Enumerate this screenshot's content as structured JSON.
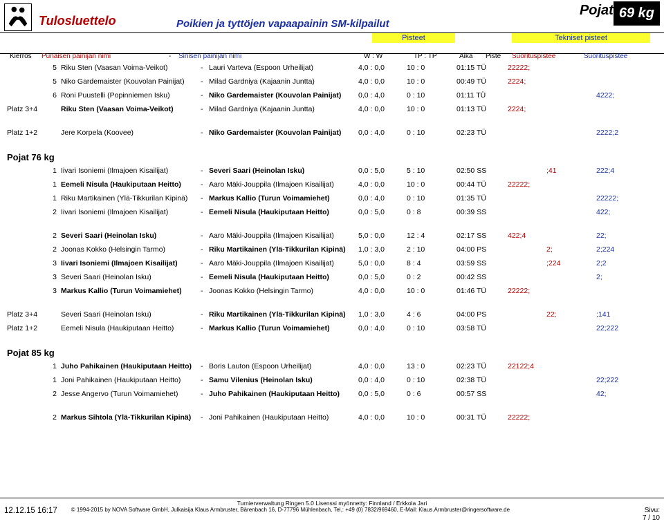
{
  "header": {
    "title_left": "Tulosluettelo",
    "title_center": "Poikien ja tyttöjen vapaapainin SM-kilpailut",
    "pojat": "Pojat",
    "kg": "69 kg",
    "pisteet": "Pisteet",
    "tekniset": "Tekniset pisteet",
    "labels": {
      "kierros": "Kierros",
      "red": "Punaisen painijan nimi",
      "dash": "-",
      "blue": "Sinisen painijan nimi",
      "ww": "W :  W",
      "tptp": "TP :  TP",
      "aika": "Aika",
      "piste": "Piste",
      "sp1": "Suorituspistee",
      "sp2": "Suorituspistee"
    }
  },
  "groups": [
    {
      "rows": [
        {
          "round": "5",
          "red": "Riku Sten (Vaasan Voima-Veikot)",
          "redBold": false,
          "blue": "Lauri Varteva (Espoon Urheilijat)",
          "blueBold": false,
          "ww": "4,0 : 0,0",
          "tptp": "10 :   0",
          "time": "01:15 TÜ",
          "piste": "22222;",
          "sp1": "",
          "sp2": ""
        },
        {
          "round": "5",
          "red": "Niko Gardemaister (Kouvolan Painijat)",
          "redBold": false,
          "blue": "Milad Gardniya (Kajaanin Juntta)",
          "blueBold": false,
          "ww": "4,0 : 0,0",
          "tptp": "10 :   0",
          "time": "00:49 TÜ",
          "piste": "2224;",
          "sp1": "",
          "sp2": ""
        },
        {
          "round": "6",
          "red": "Roni Puustelli (Popinniemen Isku)",
          "redBold": false,
          "blue": "Niko Gardemaister (Kouvolan Painijat)",
          "blueBold": true,
          "ww": "0,0 : 4,0",
          "tptp": "0 : 10",
          "time": "01:11 TÜ",
          "piste": "",
          "sp1": "",
          "sp2": "4222;"
        },
        {
          "round": "Platz 3+4",
          "platz": true,
          "red": "Riku Sten (Vaasan Voima-Veikot)",
          "redBold": true,
          "blue": "Milad Gardniya (Kajaanin Juntta)",
          "blueBold": false,
          "ww": "4,0 : 0,0",
          "tptp": "10 :   0",
          "time": "01:13 TÜ",
          "piste": "2224;",
          "sp1": "",
          "sp2": ""
        }
      ]
    },
    {
      "rows": [
        {
          "round": "Platz 1+2",
          "platz": true,
          "red": "Jere Korpela (Koovee)",
          "redBold": false,
          "blue": "Niko Gardemaister (Kouvolan Painijat)",
          "blueBold": true,
          "ww": "0,0 : 4,0",
          "tptp": "0 : 10",
          "time": "02:23 TÜ",
          "piste": "",
          "sp1": "",
          "sp2": "2222;2"
        }
      ]
    },
    {
      "heading": "Pojat 76 kg",
      "rows": [
        {
          "round": "1",
          "red": "Iivari Isoniemi (Ilmajoen Kisailijat)",
          "redBold": false,
          "blue": "Severi Saari (Heinolan Isku)",
          "blueBold": true,
          "ww": "0,0 : 5,0",
          "tptp": "5 : 10",
          "time": "02:50 SS",
          "piste": "",
          "sp1": ";41",
          "sp2": "222;4"
        },
        {
          "round": "1",
          "red": "Eemeli Nisula (Haukiputaan Heitto)",
          "redBold": true,
          "blue": "Aaro Mäki-Jouppila (Ilmajoen Kisailijat)",
          "blueBold": false,
          "ww": "4,0 : 0,0",
          "tptp": "10 :   0",
          "time": "00:44 TÜ",
          "piste": "22222;",
          "sp1": "",
          "sp2": ""
        },
        {
          "round": "1",
          "red": "Riku Martikainen (Ylä-Tikkurilan Kipinä)",
          "redBold": false,
          "blue": "Markus Kallio (Turun Voimamiehet)",
          "blueBold": true,
          "ww": "0,0 : 4,0",
          "tptp": "0 : 10",
          "time": "01:35 TÜ",
          "piste": "",
          "sp1": "",
          "sp2": "22222;"
        },
        {
          "round": "2",
          "red": "Iivari Isoniemi (Ilmajoen Kisailijat)",
          "redBold": false,
          "blue": "Eemeli Nisula (Haukiputaan Heitto)",
          "blueBold": true,
          "ww": "0,0 : 5,0",
          "tptp": "0 :   8",
          "time": "00:39 SS",
          "piste": "",
          "sp1": "",
          "sp2": "422;"
        }
      ]
    },
    {
      "rows": [
        {
          "round": "2",
          "red": "Severi Saari (Heinolan Isku)",
          "redBold": true,
          "blue": "Aaro Mäki-Jouppila (Ilmajoen Kisailijat)",
          "blueBold": false,
          "ww": "5,0 : 0,0",
          "tptp": "12 :   4",
          "time": "02:17 SS",
          "piste": "422;4",
          "sp1": "",
          "sp2": "22;"
        },
        {
          "round": "2",
          "red": "Joonas Kokko (Helsingin Tarmo)",
          "redBold": false,
          "blue": "Riku Martikainen (Ylä-Tikkurilan Kipinä)",
          "blueBold": true,
          "ww": "1,0 : 3,0",
          "tptp": "2 : 10",
          "time": "04:00 PS",
          "piste": "",
          "sp1": "2;",
          "sp2": "2;224"
        },
        {
          "round": "3",
          "red": "Iivari Isoniemi (Ilmajoen Kisailijat)",
          "redBold": true,
          "blue": "Aaro Mäki-Jouppila (Ilmajoen Kisailijat)",
          "blueBold": false,
          "ww": "5,0 : 0,0",
          "tptp": "8 :   4",
          "time": "03:59 SS",
          "piste": "",
          "sp1": ";224",
          "sp2": "2;2"
        },
        {
          "round": "3",
          "red": "Severi Saari (Heinolan Isku)",
          "redBold": false,
          "blue": "Eemeli Nisula (Haukiputaan Heitto)",
          "blueBold": true,
          "ww": "0,0 : 5,0",
          "tptp": "0 :   2",
          "time": "00:42 SS",
          "piste": "",
          "sp1": "",
          "sp2": "2;"
        },
        {
          "round": "3",
          "red": "Markus Kallio (Turun Voimamiehet)",
          "redBold": true,
          "blue": "Joonas Kokko (Helsingin Tarmo)",
          "blueBold": false,
          "ww": "4,0 : 0,0",
          "tptp": "10 :   0",
          "time": "01:46 TÜ",
          "piste": "22222;",
          "sp1": "",
          "sp2": ""
        }
      ]
    },
    {
      "rows": [
        {
          "round": "Platz 3+4",
          "platz": true,
          "red": "Severi Saari (Heinolan Isku)",
          "redBold": false,
          "blue": "Riku Martikainen (Ylä-Tikkurilan Kipinä)",
          "blueBold": true,
          "ww": "1,0 : 3,0",
          "tptp": "4 :   6",
          "time": "04:00 PS",
          "piste": "",
          "sp1": "22;",
          "sp2": ";141"
        },
        {
          "round": "Platz 1+2",
          "platz": true,
          "red": "Eemeli Nisula (Haukiputaan Heitto)",
          "redBold": false,
          "blue": "Markus Kallio (Turun Voimamiehet)",
          "blueBold": true,
          "ww": "0,0 : 4,0",
          "tptp": "0 : 10",
          "time": "03:58 TÜ",
          "piste": "",
          "sp1": "",
          "sp2": "22;222"
        }
      ]
    },
    {
      "heading": "Pojat 85 kg",
      "rows": [
        {
          "round": "1",
          "red": "Juho Pahikainen (Haukiputaan Heitto)",
          "redBold": true,
          "blue": "Boris Lauton (Espoon Urheilijat)",
          "blueBold": false,
          "ww": "4,0 : 0,0",
          "tptp": "13 :   0",
          "time": "02:23 TÜ",
          "piste": "22122;4",
          "sp1": "",
          "sp2": ""
        },
        {
          "round": "1",
          "red": "Joni Pahikainen (Haukiputaan Heitto)",
          "redBold": false,
          "blue": "Samu Vilenius (Heinolan Isku)",
          "blueBold": true,
          "ww": "0,0 : 4,0",
          "tptp": "0 : 10",
          "time": "02:38 TÜ",
          "piste": "",
          "sp1": "",
          "sp2": "22;222"
        },
        {
          "round": "2",
          "red": "Jesse Angervo (Turun Voimamiehet)",
          "redBold": false,
          "blue": "Juho Pahikainen (Haukiputaan Heitto)",
          "blueBold": true,
          "ww": "0,0 : 5,0",
          "tptp": "0 :   6",
          "time": "00:57 SS",
          "piste": "",
          "sp1": "",
          "sp2": "42;"
        }
      ]
    },
    {
      "rows": [
        {
          "round": "2",
          "red": "Markus Sihtola (Ylä-Tikkurilan Kipinä)",
          "redBold": true,
          "blue": "Joni Pahikainen (Haukiputaan Heitto)",
          "blueBold": false,
          "ww": "4,0 : 0,0",
          "tptp": "10 :   0",
          "time": "00:31 TÜ",
          "piste": "22222;",
          "sp1": "",
          "sp2": ""
        }
      ]
    }
  ],
  "footer": {
    "line1": "Turnierverwaltung Ringen 5.0 Lisenssi myönnetty: Finnland / Erkkola Jari",
    "dt": "12.12.15 16:17",
    "copy": "© 1994-2015 by NOVA Software GmbH, Julkaisija Klaus Armbruster, Bärenbach 16, D-77796 Mühlenbach, Tel.: +49 (0) 7832/969460, E-Mail: Klaus.Armbruster@ringersoftware.de",
    "sivu_label": "Sivu:",
    "page": "7 / 10"
  }
}
